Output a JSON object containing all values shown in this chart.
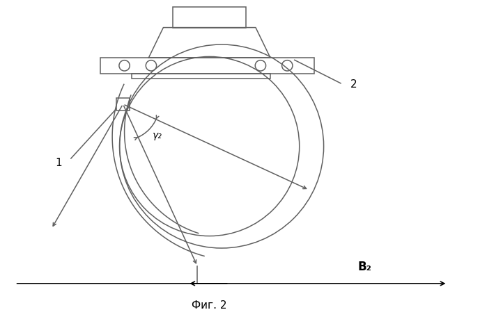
{
  "bg_color": "#ffffff",
  "line_color": "#606060",
  "fig_label": "Фиг. 2",
  "label_1": "1",
  "label_2": "2",
  "label_B2": "B₂",
  "label_gamma": "γ₂",
  "canvas_xlim": [
    0,
    10
  ],
  "canvas_ylim": [
    0,
    6.57
  ]
}
